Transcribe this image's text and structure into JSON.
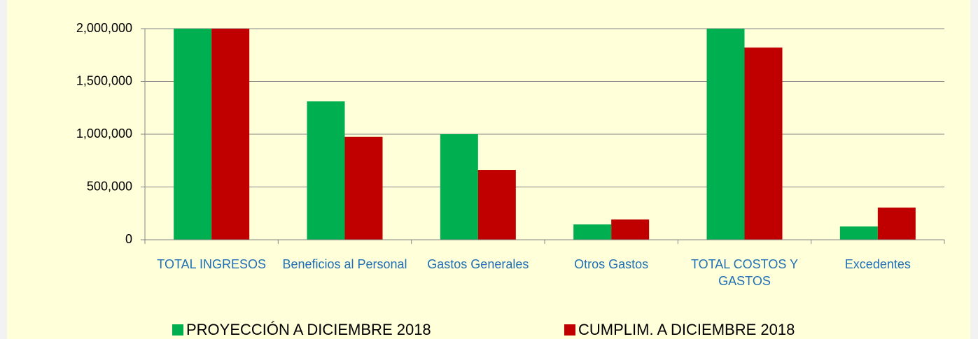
{
  "chart_data": {
    "type": "bar",
    "categories": [
      "TOTAL INGRESOS",
      "Beneficios al Personal",
      "Gastos Generales",
      "Otros Gastos",
      "TOTAL COSTOS Y GASTOS",
      "Excedentes"
    ],
    "series": [
      {
        "name": "PROYECCIÓN A DICIEMBRE 2018",
        "color": "#00b050",
        "values": [
          2000000,
          1311000,
          1000000,
          145000,
          2000000,
          126000
        ]
      },
      {
        "name": "CUMPLIM. A DICIEMBRE 2018",
        "color": "#c00000",
        "values": [
          2000000,
          975000,
          662000,
          192000,
          1821000,
          305000
        ]
      }
    ],
    "ylim": [
      0,
      2000000
    ],
    "yticks": [
      {
        "value": 0,
        "label": "0"
      },
      {
        "value": 500000,
        "label": "500,000"
      },
      {
        "value": 1000000,
        "label": "1,000,000"
      },
      {
        "value": 1500000,
        "label": "1,500,000"
      },
      {
        "value": 2000000,
        "label": "2,000,000"
      }
    ],
    "grid": true,
    "legend": "bottom"
  }
}
